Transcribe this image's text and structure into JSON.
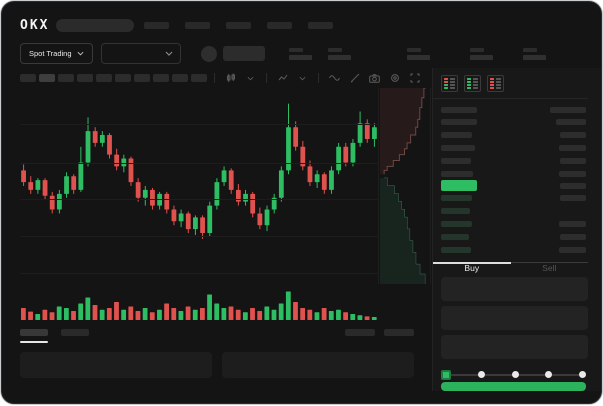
{
  "window": {
    "brand": "OKX"
  },
  "subheader": {
    "market_selector_label": "Spot Trading"
  },
  "toolbar": {
    "timeframe_slots": 10,
    "active_timeframe_index": 1,
    "icons": [
      "candle-type-icon",
      "chevron-down-icon",
      "indicators-icon",
      "chevron-down-icon",
      "wave-icon",
      "pencil-icon",
      "camera-icon",
      "settings-icon",
      "fullscreen-icon"
    ]
  },
  "orderbook": {
    "view_icons": [
      "orderbook-combined-icon",
      "orderbook-bids-icon",
      "orderbook-asks-icon"
    ],
    "asks": [
      {
        "depth": 0.6,
        "size": 0.95
      },
      {
        "depth": 0.52,
        "size": 0.8
      },
      {
        "depth": 0.56,
        "size": 0.85
      },
      {
        "depth": 0.5,
        "size": 0.8
      },
      {
        "depth": 0.54,
        "size": 0.85
      }
    ],
    "last_price_color": "#2ebd63",
    "bids": [
      {
        "depth": 0.52,
        "size": 0.8
      },
      {
        "depth": 0.48,
        "size": 0.0
      },
      {
        "depth": 0.52,
        "size": 0.85
      },
      {
        "depth": 0.46,
        "size": 0.8
      },
      {
        "depth": 0.5,
        "size": 0.85
      }
    ]
  },
  "trade_panel": {
    "buy_tab": "Buy",
    "sell_tab": "Sell",
    "field_count": 3,
    "slider_stop_count": 5,
    "slider_active_stop": 0,
    "action_button_color": "#2cb15d"
  },
  "colors": {
    "up": "#2ebd63",
    "down": "#e0524e",
    "depth_ask_fill": "#261b1a",
    "depth_ask_line": "#6e4642",
    "depth_bid_fill": "#18251f",
    "depth_bid_line": "#3d6b57"
  },
  "chart_data": {
    "type": "candlestick",
    "title": "",
    "xlabel": "",
    "ylabel": "",
    "axis_labels_visible": false,
    "grid": true,
    "value_scale": [
      0,
      100
    ],
    "candles_ohlc": [
      [
        58,
        61,
        50,
        52
      ],
      [
        52,
        55,
        46,
        48
      ],
      [
        48,
        54,
        46,
        53
      ],
      [
        53,
        54,
        43,
        45
      ],
      [
        45,
        47,
        36,
        38
      ],
      [
        38,
        48,
        36,
        46
      ],
      [
        46,
        57,
        44,
        55
      ],
      [
        55,
        56,
        46,
        48
      ],
      [
        48,
        70,
        47,
        62
      ],
      [
        62,
        85,
        60,
        78
      ],
      [
        78,
        80,
        70,
        72
      ],
      [
        72,
        78,
        70,
        76
      ],
      [
        76,
        77,
        64,
        66
      ],
      [
        66,
        69,
        58,
        60
      ],
      [
        60,
        66,
        57,
        64
      ],
      [
        64,
        65,
        50,
        52
      ],
      [
        52,
        54,
        42,
        44
      ],
      [
        44,
        50,
        40,
        48
      ],
      [
        48,
        49,
        38,
        40
      ],
      [
        40,
        47,
        38,
        46
      ],
      [
        46,
        47,
        36,
        38
      ],
      [
        38,
        40,
        30,
        32
      ],
      [
        32,
        38,
        29,
        36
      ],
      [
        36,
        37,
        26,
        28
      ],
      [
        28,
        35,
        25,
        34
      ],
      [
        34,
        35,
        23,
        26
      ],
      [
        26,
        42,
        24,
        40
      ],
      [
        40,
        54,
        38,
        52
      ],
      [
        52,
        60,
        50,
        58
      ],
      [
        58,
        59,
        46,
        48
      ],
      [
        48,
        51,
        40,
        42
      ],
      [
        42,
        48,
        40,
        46
      ],
      [
        46,
        47,
        34,
        36
      ],
      [
        36,
        39,
        28,
        30
      ],
      [
        30,
        40,
        27,
        38
      ],
      [
        38,
        46,
        36,
        44
      ],
      [
        44,
        60,
        42,
        58
      ],
      [
        58,
        92,
        56,
        80
      ],
      [
        80,
        83,
        68,
        70
      ],
      [
        70,
        73,
        58,
        60
      ],
      [
        60,
        63,
        50,
        52
      ],
      [
        52,
        58,
        49,
        56
      ],
      [
        56,
        57,
        46,
        48
      ],
      [
        48,
        60,
        46,
        58
      ],
      [
        58,
        72,
        56,
        70
      ],
      [
        70,
        72,
        60,
        62
      ],
      [
        62,
        74,
        60,
        72
      ],
      [
        72,
        88,
        70,
        82
      ],
      [
        82,
        84,
        72,
        74
      ],
      [
        74,
        82,
        70,
        80
      ]
    ],
    "volume": [
      40,
      28,
      20,
      34,
      26,
      45,
      40,
      30,
      55,
      75,
      50,
      34,
      40,
      60,
      34,
      45,
      30,
      40,
      26,
      34,
      55,
      40,
      30,
      45,
      34,
      40,
      85,
      55,
      40,
      45,
      34,
      26,
      40,
      30,
      45,
      34,
      55,
      95,
      60,
      40,
      34,
      26,
      40,
      30,
      34,
      26,
      20,
      16,
      12,
      10
    ],
    "depth": {
      "asks_curve": [
        [
          0.92,
          0.0
        ],
        [
          0.88,
          0.05
        ],
        [
          0.84,
          0.1
        ],
        [
          0.8,
          0.16
        ],
        [
          0.76,
          0.2
        ],
        [
          0.72,
          0.24
        ],
        [
          0.62,
          0.28
        ],
        [
          0.55,
          0.31
        ],
        [
          0.5,
          0.34
        ],
        [
          0.4,
          0.37
        ],
        [
          0.28,
          0.4
        ],
        [
          0.16,
          0.42
        ],
        [
          0.1,
          0.44
        ]
      ],
      "bids_curve": [
        [
          0.1,
          0.46
        ],
        [
          0.16,
          0.5
        ],
        [
          0.3,
          0.54
        ],
        [
          0.38,
          0.58
        ],
        [
          0.44,
          0.62
        ],
        [
          0.5,
          0.66
        ],
        [
          0.55,
          0.72
        ],
        [
          0.6,
          0.78
        ],
        [
          0.66,
          0.84
        ],
        [
          0.72,
          0.9
        ],
        [
          0.8,
          0.95
        ],
        [
          0.9,
          1.0
        ]
      ]
    }
  }
}
